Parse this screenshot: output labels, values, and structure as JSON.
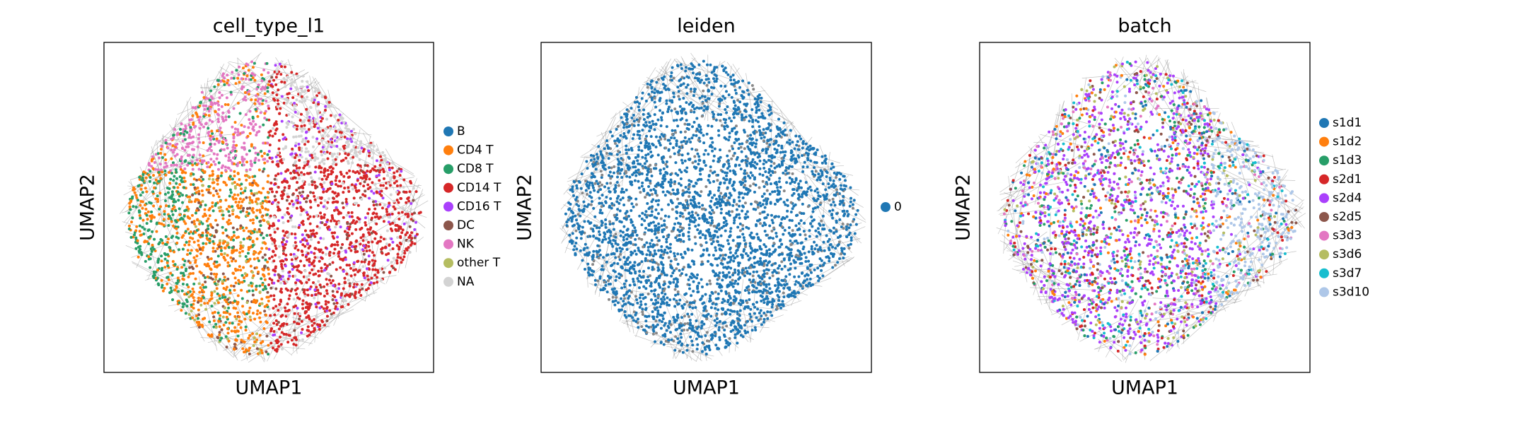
{
  "chart_data": [
    {
      "type": "scatter",
      "title": "cell_type_l1",
      "xlabel": "UMAP1",
      "ylabel": "UMAP2",
      "series": [
        {
          "name": "B",
          "color": "#1f77b4"
        },
        {
          "name": "CD4 T",
          "color": "#ff7f0e"
        },
        {
          "name": "CD8 T",
          "color": "#279e68"
        },
        {
          "name": "CD14 T",
          "color": "#d62728"
        },
        {
          "name": "CD16 T",
          "color": "#aa40fc"
        },
        {
          "name": "DC",
          "color": "#8c564b"
        },
        {
          "name": "NK",
          "color": "#e377c2"
        },
        {
          "name": "other T",
          "color": "#b5bd61"
        },
        {
          "name": "NA",
          "color": "#d3d3d3"
        }
      ]
    },
    {
      "type": "scatter",
      "title": "leiden",
      "xlabel": "UMAP1",
      "ylabel": "UMAP2",
      "series": [
        {
          "name": "0",
          "color": "#1f77b4"
        }
      ]
    },
    {
      "type": "scatter",
      "title": "batch",
      "xlabel": "UMAP1",
      "ylabel": "UMAP2",
      "series": [
        {
          "name": "s1d1",
          "color": "#1f77b4"
        },
        {
          "name": "s1d2",
          "color": "#ff7f0e"
        },
        {
          "name": "s1d3",
          "color": "#279e68"
        },
        {
          "name": "s2d1",
          "color": "#d62728"
        },
        {
          "name": "s2d4",
          "color": "#aa40fc"
        },
        {
          "name": "s2d5",
          "color": "#8c564b"
        },
        {
          "name": "s3d3",
          "color": "#e377c2"
        },
        {
          "name": "s3d6",
          "color": "#b5bd61"
        },
        {
          "name": "s3d7",
          "color": "#17becf"
        },
        {
          "name": "s3d10",
          "color": "#aec7e8"
        }
      ]
    }
  ]
}
